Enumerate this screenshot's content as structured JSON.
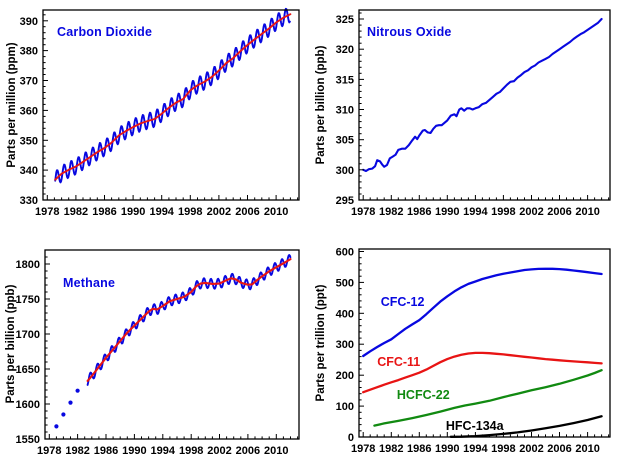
{
  "colors": {
    "blue": "#0808e0",
    "red": "#e81414",
    "green": "#118a11",
    "black": "#000000",
    "axis": "#000000",
    "bg": "#ffffff"
  },
  "chart_data": [
    {
      "id": "co2",
      "type": "line",
      "title": "Carbon Dioxide",
      "title_color": "blue",
      "ylabel": "Parts per million (ppm)",
      "xlabel": "",
      "xlim": [
        1977.4,
        2013.2
      ],
      "ylim": [
        330,
        393.6
      ],
      "xticks": [
        1978,
        1982,
        1986,
        1990,
        1994,
        1998,
        2002,
        2006,
        2010
      ],
      "x_minor_step": 1,
      "yticks": [
        330,
        340,
        350,
        360,
        370,
        380,
        390
      ],
      "y_minor_step": 2,
      "grid": false,
      "trend_points": [
        [
          1979.1,
          336.8
        ],
        [
          1980,
          338.8
        ],
        [
          1981,
          340.1
        ],
        [
          1982,
          341.2
        ],
        [
          1983,
          342.8
        ],
        [
          1984,
          344.4
        ],
        [
          1985,
          346.0
        ],
        [
          1986,
          347.4
        ],
        [
          1987,
          349.2
        ],
        [
          1988,
          351.6
        ],
        [
          1989,
          353.1
        ],
        [
          1990,
          354.4
        ],
        [
          1991,
          355.6
        ],
        [
          1992,
          356.4
        ],
        [
          1993,
          357.1
        ],
        [
          1994,
          358.9
        ],
        [
          1995,
          360.9
        ],
        [
          1996,
          362.6
        ],
        [
          1997,
          363.8
        ],
        [
          1998,
          366.7
        ],
        [
          1999,
          368.4
        ],
        [
          2000,
          369.6
        ],
        [
          2001,
          371.2
        ],
        [
          2002,
          373.3
        ],
        [
          2003,
          375.8
        ],
        [
          2004,
          377.5
        ],
        [
          2005,
          379.8
        ],
        [
          2006,
          381.9
        ],
        [
          2007,
          383.8
        ],
        [
          2008,
          385.6
        ],
        [
          2009,
          387.4
        ],
        [
          2010,
          389.4
        ],
        [
          2011,
          391.0
        ],
        [
          2012,
          392.2
        ]
      ],
      "series": [
        {
          "name": "co2-monthly",
          "style": "seasonal",
          "from": "trend_points",
          "amplitude": 2.6,
          "phase": 0.12,
          "color": "blue",
          "width": 1.9
        },
        {
          "name": "co2-trend",
          "style": "line",
          "from": "trend_points",
          "color": "red",
          "width": 1.9
        }
      ]
    },
    {
      "id": "n2o",
      "type": "line",
      "title": "Nitrous Oxide",
      "title_color": "blue",
      "ylabel": "Parts per billion (ppb)",
      "xlabel": "",
      "xlim": [
        1977.4,
        2013.2
      ],
      "ylim": [
        295,
        326.5
      ],
      "xticks": [
        1978,
        1982,
        1986,
        1990,
        1994,
        1998,
        2002,
        2006,
        2010
      ],
      "x_minor_step": 1,
      "yticks": [
        295,
        300,
        305,
        310,
        315,
        320,
        325
      ],
      "y_minor_step": 1,
      "grid": false,
      "points": [
        [
          1978.0,
          300.0
        ],
        [
          1978.4,
          299.8
        ],
        [
          1978.8,
          300.1
        ],
        [
          1979.3,
          300.2
        ],
        [
          1979.7,
          300.6
        ],
        [
          1980.0,
          301.6
        ],
        [
          1980.4,
          301.4
        ],
        [
          1980.7,
          300.9
        ],
        [
          1981.0,
          300.5
        ],
        [
          1981.4,
          300.8
        ],
        [
          1981.8,
          301.9
        ],
        [
          1982.2,
          302.2
        ],
        [
          1982.6,
          302.5
        ],
        [
          1983.0,
          303.3
        ],
        [
          1983.5,
          303.5
        ],
        [
          1984.0,
          303.5
        ],
        [
          1984.5,
          304.1
        ],
        [
          1985.0,
          304.9
        ],
        [
          1985.4,
          305.5
        ],
        [
          1985.7,
          305.1
        ],
        [
          1986.0,
          305.7
        ],
        [
          1986.5,
          306.5
        ],
        [
          1986.8,
          306.6
        ],
        [
          1987.2,
          306.2
        ],
        [
          1987.6,
          306.1
        ],
        [
          1988.0,
          306.8
        ],
        [
          1988.4,
          307.3
        ],
        [
          1988.8,
          307.4
        ],
        [
          1989.2,
          307.4
        ],
        [
          1989.6,
          307.8
        ],
        [
          1990.0,
          308.2
        ],
        [
          1990.5,
          309.0
        ],
        [
          1991.0,
          309.2
        ],
        [
          1991.3,
          308.9
        ],
        [
          1991.7,
          310.0
        ],
        [
          1992.0,
          310.2
        ],
        [
          1992.4,
          309.8
        ],
        [
          1992.8,
          310.2
        ],
        [
          1993.2,
          310.2
        ],
        [
          1993.6,
          310.0
        ],
        [
          1994.0,
          310.2
        ],
        [
          1994.5,
          310.4
        ],
        [
          1995.0,
          310.9
        ],
        [
          1995.5,
          311.1
        ],
        [
          1996.0,
          311.6
        ],
        [
          1996.5,
          312.1
        ],
        [
          1997.0,
          312.6
        ],
        [
          1997.5,
          312.9
        ],
        [
          1998.0,
          313.5
        ],
        [
          1998.5,
          314.1
        ],
        [
          1999.0,
          314.6
        ],
        [
          1999.5,
          314.7
        ],
        [
          2000.0,
          315.3
        ],
        [
          2000.5,
          315.7
        ],
        [
          2001.0,
          316.2
        ],
        [
          2001.5,
          316.5
        ],
        [
          2002.0,
          317.0
        ],
        [
          2002.5,
          317.3
        ],
        [
          2003.0,
          317.8
        ],
        [
          2003.5,
          318.1
        ],
        [
          2004.0,
          318.4
        ],
        [
          2004.5,
          318.7
        ],
        [
          2005.0,
          319.2
        ],
        [
          2005.5,
          319.6
        ],
        [
          2006.0,
          320.0
        ],
        [
          2006.5,
          320.4
        ],
        [
          2007.0,
          320.8
        ],
        [
          2007.5,
          321.2
        ],
        [
          2008.0,
          321.7
        ],
        [
          2008.5,
          322.1
        ],
        [
          2009.0,
          322.5
        ],
        [
          2009.5,
          322.8
        ],
        [
          2010.0,
          323.2
        ],
        [
          2010.5,
          323.6
        ],
        [
          2011.0,
          324.0
        ],
        [
          2011.5,
          324.4
        ],
        [
          2012.0,
          325.0
        ]
      ],
      "series": [
        {
          "name": "n2o-monthly",
          "style": "line",
          "from": "points",
          "color": "blue",
          "width": 2.1
        }
      ]
    },
    {
      "id": "ch4",
      "type": "line",
      "title": "Methane",
      "title_color": "blue",
      "ylabel": "Parts per billion (ppb)",
      "xlabel": "",
      "xlim": [
        1977.4,
        2013.2
      ],
      "ylim": [
        1550,
        1820
      ],
      "xticks": [
        1978,
        1982,
        1986,
        1990,
        1994,
        1998,
        2002,
        2006,
        2010
      ],
      "x_minor_step": 1,
      "yticks": [
        1550,
        1600,
        1650,
        1700,
        1750,
        1800
      ],
      "y_minor_step": 10,
      "grid": false,
      "dot_points": [
        [
          1979,
          1568
        ],
        [
          1980,
          1585
        ],
        [
          1981,
          1602
        ],
        [
          1982,
          1619
        ]
      ],
      "trend_points": [
        [
          1983.4,
          1633
        ],
        [
          1984,
          1640
        ],
        [
          1985,
          1653
        ],
        [
          1986,
          1666
        ],
        [
          1987,
          1678
        ],
        [
          1988,
          1690
        ],
        [
          1989,
          1702
        ],
        [
          1990,
          1712
        ],
        [
          1991,
          1722
        ],
        [
          1992,
          1732
        ],
        [
          1992.6,
          1736
        ],
        [
          1993.2,
          1735
        ],
        [
          1994,
          1740
        ],
        [
          1995,
          1747
        ],
        [
          1996,
          1750
        ],
        [
          1997,
          1753
        ],
        [
          1998,
          1760
        ],
        [
          1998.7,
          1768
        ],
        [
          1999.3,
          1772
        ],
        [
          2000,
          1773
        ],
        [
          2001,
          1771.5
        ],
        [
          2002,
          1772
        ],
        [
          2003,
          1777
        ],
        [
          2003.6,
          1779.5
        ],
        [
          2004.3,
          1778
        ],
        [
          2005,
          1773.5
        ],
        [
          2006,
          1770.5
        ],
        [
          2006.6,
          1771
        ],
        [
          2007.3,
          1777
        ],
        [
          2008,
          1782.5
        ],
        [
          2009,
          1789.5
        ],
        [
          2010,
          1795.5
        ],
        [
          2011,
          1801
        ],
        [
          2012,
          1807
        ]
      ],
      "series": [
        {
          "name": "ch4-early-annual-dots",
          "style": "dots",
          "from": "dot_points",
          "color": "blue",
          "radius": 2.1
        },
        {
          "name": "ch4-monthly",
          "style": "seasonal",
          "from": "trend_points",
          "amplitude": 7,
          "phase": 0.55,
          "color": "blue",
          "width": 1.9
        },
        {
          "name": "ch4-trend",
          "style": "line",
          "from": "trend_points",
          "color": "red",
          "width": 2.1
        }
      ]
    },
    {
      "id": "halo",
      "type": "line",
      "title": "",
      "ylabel": "Parts per trillion (ppt)",
      "xlabel": "",
      "xlim": [
        1977.4,
        2013.2
      ],
      "ylim": [
        0,
        608
      ],
      "xticks": [
        1978,
        1982,
        1986,
        1990,
        1994,
        1998,
        2002,
        2006,
        2010
      ],
      "x_minor_step": 1,
      "yticks": [
        0,
        100,
        200,
        300,
        400,
        500,
        600
      ],
      "y_minor_step": 20,
      "grid": false,
      "series": [
        {
          "name": "CFC-12",
          "style": "line",
          "color": "blue",
          "width": 2.3,
          "points": [
            [
              1978,
              262
            ],
            [
              1979,
              277
            ],
            [
              1980,
              291
            ],
            [
              1981,
              304
            ],
            [
              1982,
              316
            ],
            [
              1983,
              333
            ],
            [
              1984,
              350
            ],
            [
              1985,
              364
            ],
            [
              1986,
              378
            ],
            [
              1987,
              397
            ],
            [
              1988,
              418
            ],
            [
              1989,
              438
            ],
            [
              1990,
              455
            ],
            [
              1991,
              471
            ],
            [
              1992,
              484
            ],
            [
              1993,
              495
            ],
            [
              1994,
              503
            ],
            [
              1995,
              511
            ],
            [
              1996,
              517
            ],
            [
              1997,
              523
            ],
            [
              1998,
              528
            ],
            [
              1999,
              532
            ],
            [
              2000,
              536
            ],
            [
              2001,
              540
            ],
            [
              2002,
              542
            ],
            [
              2003,
              543.5
            ],
            [
              2004,
              544
            ],
            [
              2005,
              544
            ],
            [
              2006,
              543
            ],
            [
              2007,
              541
            ],
            [
              2008,
              538.5
            ],
            [
              2009,
              536
            ],
            [
              2010,
              533
            ],
            [
              2011,
              530
            ],
            [
              2012,
              527
            ]
          ]
        },
        {
          "name": "CFC-11",
          "style": "line",
          "color": "red",
          "width": 2.3,
          "points": [
            [
              1978,
              145
            ],
            [
              1979,
              153
            ],
            [
              1980,
              161
            ],
            [
              1981,
              169
            ],
            [
              1982,
              177
            ],
            [
              1983,
              184
            ],
            [
              1984,
              192
            ],
            [
              1985,
              200
            ],
            [
              1986,
              208
            ],
            [
              1987,
              218
            ],
            [
              1988,
              230
            ],
            [
              1989,
              242
            ],
            [
              1990,
              252
            ],
            [
              1991,
              260
            ],
            [
              1992,
              266
            ],
            [
              1993,
              270
            ],
            [
              1994,
              272
            ],
            [
              1995,
              272
            ],
            [
              1996,
              271
            ],
            [
              1997,
              269
            ],
            [
              1998,
              267
            ],
            [
              1999,
              264.5
            ],
            [
              2000,
              262
            ],
            [
              2001,
              259.5
            ],
            [
              2002,
              257
            ],
            [
              2003,
              254.5
            ],
            [
              2004,
              252
            ],
            [
              2005,
              250
            ],
            [
              2006,
              248
            ],
            [
              2007,
              246
            ],
            [
              2008,
              244.5
            ],
            [
              2009,
              243
            ],
            [
              2010,
              241.5
            ],
            [
              2011,
              239.5
            ],
            [
              2012,
              238
            ]
          ]
        },
        {
          "name": "HCFC-22",
          "style": "line",
          "color": "green",
          "width": 2.3,
          "points": [
            [
              1979.6,
              37
            ],
            [
              1981,
              44
            ],
            [
              1983,
              52
            ],
            [
              1985,
              61
            ],
            [
              1987,
              71
            ],
            [
              1989,
              82
            ],
            [
              1991,
              94
            ],
            [
              1992.5,
              102
            ],
            [
              1994,
              108
            ],
            [
              1996,
              117
            ],
            [
              1998,
              129
            ],
            [
              2000,
              140
            ],
            [
              2002,
              151
            ],
            [
              2004,
              161
            ],
            [
              2006,
              172
            ],
            [
              2008,
              185
            ],
            [
              2010,
              199
            ],
            [
              2011,
              207
            ],
            [
              2012,
              216
            ]
          ]
        },
        {
          "name": "HFC-134a",
          "style": "line",
          "color": "black",
          "width": 2.3,
          "points": [
            [
              1990.5,
              0.5
            ],
            [
              1992,
              1
            ],
            [
              1994,
              3
            ],
            [
              1996,
              6
            ],
            [
              1998,
              10
            ],
            [
              2000,
              15
            ],
            [
              2002,
              21
            ],
            [
              2004,
              28
            ],
            [
              2006,
              36
            ],
            [
              2008,
              45
            ],
            [
              2010,
              55
            ],
            [
              2011,
              61
            ],
            [
              2012,
              67
            ]
          ]
        }
      ],
      "annotations": [
        {
          "text": "CFC-12",
          "color": "blue",
          "x": 1980.5,
          "y": 424
        },
        {
          "text": "CFC-11",
          "color": "red",
          "x": 1980.0,
          "y": 230
        },
        {
          "text": "HCFC-22",
          "color": "green",
          "x": 1982.8,
          "y": 123
        },
        {
          "text": "HFC-134a",
          "color": "black",
          "x": 1989.8,
          "y": 23
        }
      ]
    }
  ]
}
